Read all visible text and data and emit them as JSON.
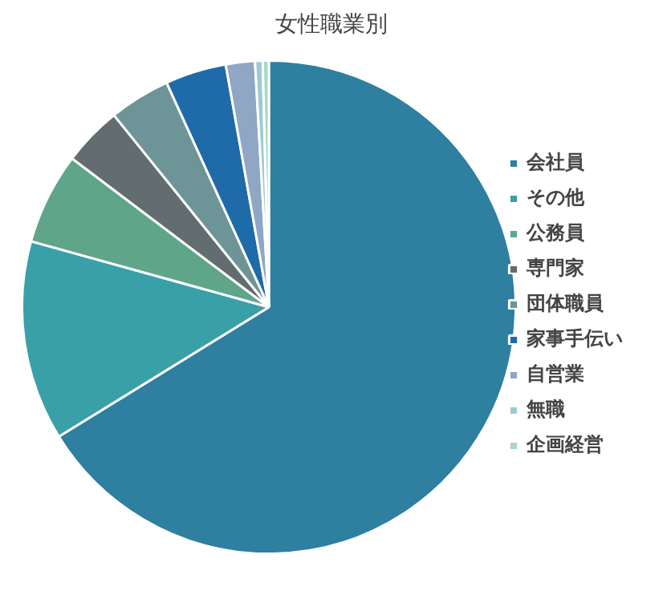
{
  "chart_data": {
    "type": "pie",
    "title": "女性職業別",
    "categories": [
      "会社員",
      "その他",
      "公務員",
      "専門家",
      "団体職員",
      "家事手伝い",
      "自営業",
      "無職",
      "企画経営"
    ],
    "values": [
      66.2,
      13.1,
      6.0,
      3.9,
      4.0,
      4.0,
      1.9,
      0.5,
      0.4
    ],
    "colors": [
      "#2e7fa0",
      "#3aa0a8",
      "#5fa58a",
      "#636c6e",
      "#6d9497",
      "#1f6aa8",
      "#8fa6c4",
      "#9fc9d4",
      "#a9d6c8"
    ],
    "legend": "right"
  }
}
